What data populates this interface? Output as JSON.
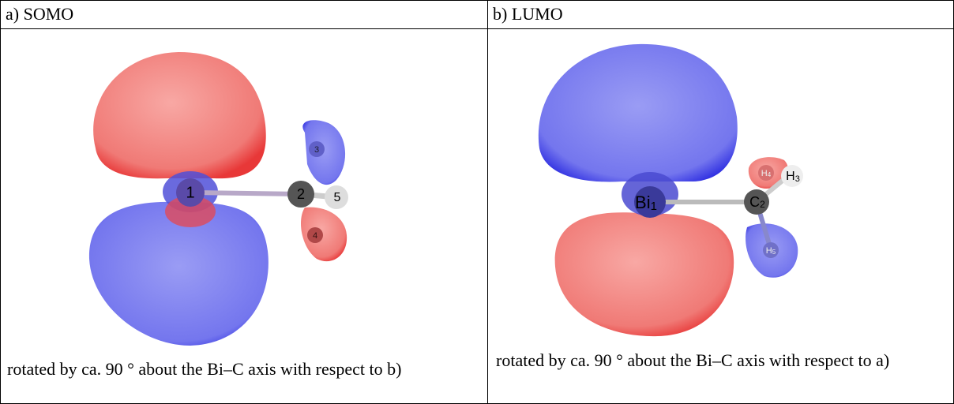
{
  "table": {
    "headers": [
      "a) SOMO",
      "b) LUMO"
    ],
    "cells": [
      {
        "caption": "rotated by ca. 90 ° about the Bi–C axis with respect to b)",
        "atoms": [
          {
            "label": "1"
          },
          {
            "label": "2"
          },
          {
            "label": "3"
          },
          {
            "label": "4"
          },
          {
            "label": "5"
          }
        ]
      },
      {
        "caption": "rotated by ca. 90 ° about the Bi–C axis with respect to a)",
        "atoms": [
          {
            "label": "Bi",
            "sub": "1"
          },
          {
            "label": "C",
            "sub": "2"
          },
          {
            "label": "H",
            "sub": "3"
          },
          {
            "label": "H",
            "sub": "4"
          },
          {
            "label": "H",
            "sub": "5"
          }
        ]
      }
    ]
  }
}
